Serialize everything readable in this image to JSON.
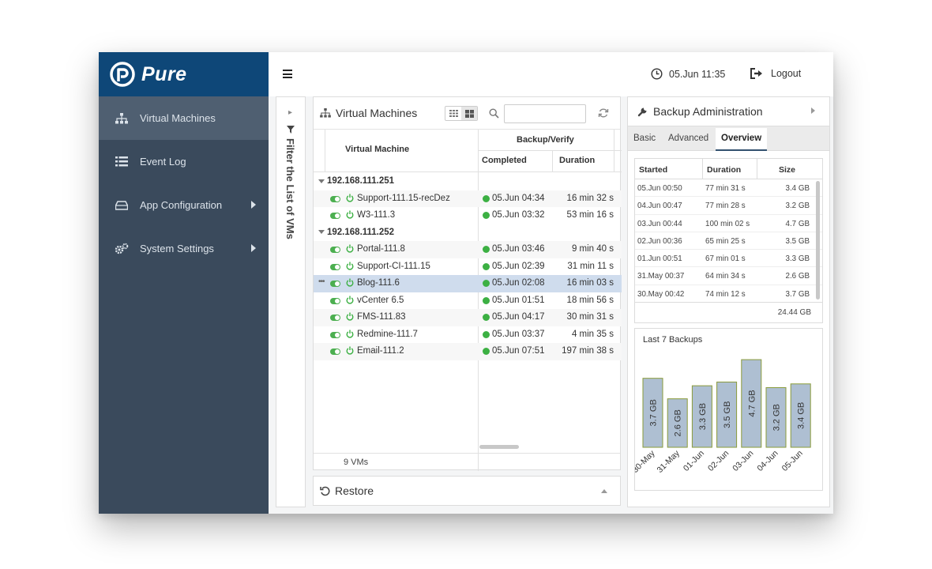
{
  "app": {
    "logo_text": "Pure"
  },
  "sidebar": {
    "items": [
      {
        "label": "Virtual Machines",
        "icon": "sitemap-icon",
        "active": true,
        "has_submenu": false
      },
      {
        "label": "Event Log",
        "icon": "list-icon",
        "active": false,
        "has_submenu": false
      },
      {
        "label": "App Configuration",
        "icon": "drive-icon",
        "active": false,
        "has_submenu": true
      },
      {
        "label": "System Settings",
        "icon": "gears-icon",
        "active": false,
        "has_submenu": true
      }
    ]
  },
  "topbar": {
    "time": "05.Jun 11:35",
    "logout_label": "Logout"
  },
  "filter": {
    "label": "Filter the List of VMs"
  },
  "vm_panel": {
    "title": "Virtual Machines",
    "search_value": "",
    "columns": {
      "vm": "Virtual Machine",
      "group": "Backup/Verify",
      "completed": "Completed",
      "duration": "Duration"
    },
    "rows": [
      {
        "type": "host",
        "name": "192.168.111.251"
      },
      {
        "type": "vm",
        "name": "Support-111.15-recDez",
        "completed": "05.Jun 04:34",
        "duration": "16 min 32 s"
      },
      {
        "type": "vm",
        "name": "W3-111.3",
        "completed": "05.Jun 03:32",
        "duration": "53 min 16 s"
      },
      {
        "type": "host",
        "name": "192.168.111.252"
      },
      {
        "type": "vm",
        "name": "Portal-111.8",
        "completed": "05.Jun 03:46",
        "duration": "9 min 40 s"
      },
      {
        "type": "vm",
        "name": "Support-CI-111.15",
        "completed": "05.Jun 02:39",
        "duration": "31 min 11 s"
      },
      {
        "type": "vm",
        "name": "Blog-111.6",
        "completed": "05.Jun 02:08",
        "duration": "16 min 03 s",
        "selected": true
      },
      {
        "type": "vm",
        "name": "vCenter 6.5",
        "completed": "05.Jun 01:51",
        "duration": "18 min 56 s"
      },
      {
        "type": "vm",
        "name": "FMS-111.83",
        "completed": "05.Jun 04:17",
        "duration": "30 min 31 s"
      },
      {
        "type": "vm",
        "name": "Redmine-111.7",
        "completed": "05.Jun 03:37",
        "duration": "4 min 35 s"
      },
      {
        "type": "vm",
        "name": "Email-111.2",
        "completed": "05.Jun 07:51",
        "duration": "197 min 38 s"
      }
    ],
    "footer": "9 VMs"
  },
  "restore": {
    "title": "Restore"
  },
  "backup": {
    "title": "Backup Administration",
    "tabs": [
      {
        "label": "Basic",
        "active": false
      },
      {
        "label": "Advanced",
        "active": false
      },
      {
        "label": "Overview",
        "active": true
      }
    ],
    "table": {
      "headers": {
        "started": "Started",
        "duration": "Duration",
        "size": "Size"
      },
      "rows": [
        {
          "started": "05.Jun 00:50",
          "duration": "77 min 31 s",
          "size": "3.4 GB"
        },
        {
          "started": "04.Jun 00:47",
          "duration": "77 min 28 s",
          "size": "3.2 GB"
        },
        {
          "started": "03.Jun 00:44",
          "duration": "100 min 02 s",
          "size": "4.7 GB"
        },
        {
          "started": "02.Jun 00:36",
          "duration": "65 min 25 s",
          "size": "3.5 GB"
        },
        {
          "started": "01.Jun 00:51",
          "duration": "67 min 01 s",
          "size": "3.3 GB"
        },
        {
          "started": "31.May 00:37",
          "duration": "64 min 34 s",
          "size": "2.6 GB"
        },
        {
          "started": "30.May 00:42",
          "duration": "74 min 12 s",
          "size": "3.7 GB"
        }
      ],
      "total": "24.44 GB"
    }
  },
  "chart_data": {
    "type": "bar",
    "title": "Last 7 Backups",
    "categories": [
      "30-May",
      "31-May",
      "01-Jun",
      "02-Jun",
      "03-Jun",
      "04-Jun",
      "05-Jun"
    ],
    "values": [
      3.7,
      2.6,
      3.3,
      3.5,
      4.7,
      3.2,
      3.4
    ],
    "data_labels": [
      "3.7 GB",
      "2.6 GB",
      "3.3 GB",
      "3.5 GB",
      "4.7 GB",
      "3.2 GB",
      "3.4 GB"
    ],
    "unit": "GB",
    "ylim": [
      0,
      5
    ],
    "grid": false,
    "legend": "none",
    "bar_color": "#aebfd2",
    "bar_border": "#8a9b3a"
  },
  "colors": {
    "sidebar": "#3a4a5c",
    "logo_bg": "#0e4778",
    "ok_green": "#3cb043",
    "selected_row": "#cfdced"
  }
}
